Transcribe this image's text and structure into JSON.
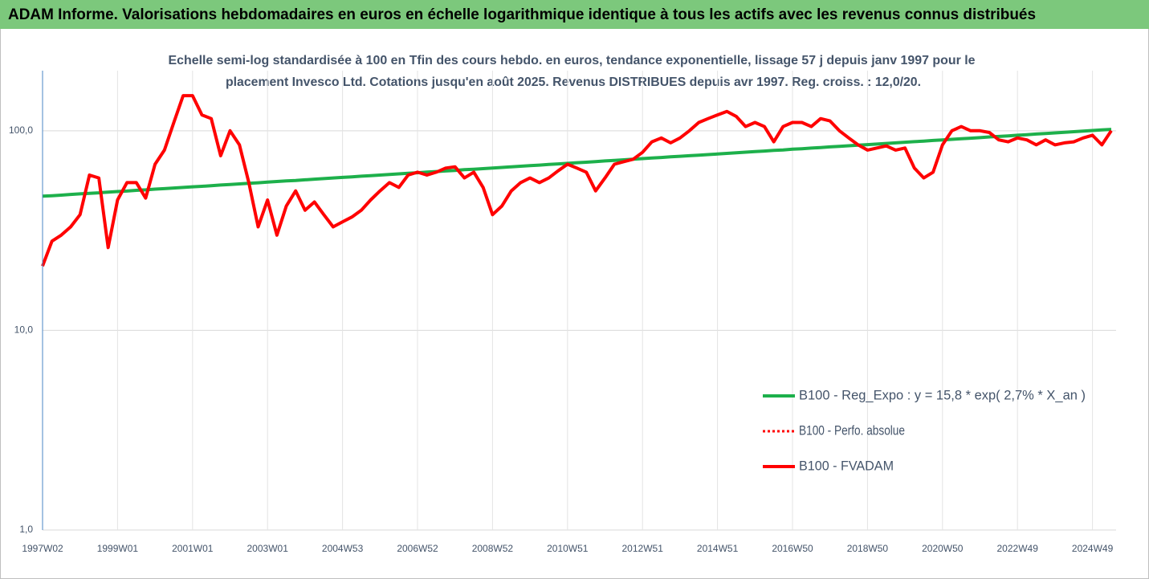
{
  "chart_data": {
    "type": "line",
    "title": "ADAM Informe. Valorisations hebdomadaires en euros en échelle logarithmique identique à tous les actifs avec les revenus connus distribués",
    "subtitle": [
      "Echelle semi-log standardisée à 100 en Tfin des cours hebdo. en euros, tendance exponentielle, lissage 57 j depuis janv 1997 pour le",
      "placement Invesco Ltd. Cotations jusqu'en août 2025. Revenus DISTRIBUES depuis avr 1997. Reg. croiss. : 12,0/20."
    ],
    "log_scale": true,
    "grid": true,
    "legend": "right",
    "ylim": [
      1,
      200
    ],
    "yticks": [
      {
        "value": 1,
        "label": "1,0"
      },
      {
        "value": 10,
        "label": "10,0"
      },
      {
        "value": 100,
        "label": "100,0"
      }
    ],
    "categories": [
      "1997W02",
      null,
      null,
      null,
      null,
      null,
      null,
      null,
      "1999W01",
      null,
      null,
      null,
      null,
      null,
      null,
      null,
      "2001W01",
      null,
      null,
      null,
      null,
      null,
      null,
      null,
      "2003W01",
      null,
      null,
      null,
      null,
      null,
      null,
      null,
      "2004W53",
      null,
      null,
      null,
      null,
      null,
      null,
      null,
      "2006W52",
      null,
      null,
      null,
      null,
      null,
      null,
      null,
      "2008W52",
      null,
      null,
      null,
      null,
      null,
      null,
      null,
      "2010W51",
      null,
      null,
      null,
      null,
      null,
      null,
      null,
      "2012W51",
      null,
      null,
      null,
      null,
      null,
      null,
      null,
      "2014W51",
      null,
      null,
      null,
      null,
      null,
      null,
      null,
      "2016W50",
      null,
      null,
      null,
      null,
      null,
      null,
      null,
      "2018W50",
      null,
      null,
      null,
      null,
      null,
      null,
      null,
      "2020W50",
      null,
      null,
      null,
      null,
      null,
      null,
      null,
      "2022W49",
      null,
      null,
      null,
      null,
      null,
      null,
      null,
      "2024W49",
      null,
      null
    ],
    "series": [
      {
        "name": "B100 - Reg_Expo : y = 15,8 * exp( 2,7% *  X_an )",
        "color": "#1db04b",
        "style": "solid",
        "values": [
          47.0,
          47.3,
          47.6,
          48.0,
          48.3,
          48.6,
          48.9,
          49.3,
          49.6,
          49.9,
          50.3,
          50.6,
          51.0,
          51.3,
          51.7,
          52.0,
          52.4,
          52.7,
          53.1,
          53.5,
          53.8,
          54.2,
          54.6,
          54.9,
          55.3,
          55.7,
          56.1,
          56.4,
          56.8,
          57.2,
          57.6,
          58.0,
          58.4,
          58.8,
          59.2,
          59.6,
          60.0,
          60.4,
          60.8,
          61.2,
          61.6,
          62.1,
          62.5,
          62.9,
          63.3,
          63.8,
          64.2,
          64.6,
          65.1,
          65.5,
          66.0,
          66.4,
          66.9,
          67.3,
          67.8,
          68.2,
          68.7,
          69.2,
          69.6,
          70.1,
          70.6,
          71.1,
          71.5,
          72.0,
          72.5,
          73.0,
          73.5,
          74.0,
          74.5,
          75.0,
          75.5,
          76.0,
          76.5,
          77.0,
          77.6,
          78.1,
          78.6,
          79.1,
          79.7,
          80.2,
          80.8,
          81.3,
          81.9,
          82.4,
          83.0,
          83.5,
          84.1,
          84.7,
          85.2,
          85.8,
          86.4,
          87.0,
          87.6,
          88.2,
          88.8,
          89.4,
          90.0,
          90.6,
          91.2,
          91.8,
          92.4,
          93.1,
          93.7,
          94.3,
          95.0,
          95.6,
          96.3,
          96.9,
          97.6,
          98.2,
          98.9,
          99.6,
          100.3,
          101.0,
          101.6
        ]
      },
      {
        "name": "B100 - Perfo. absolue",
        "color": "#ff0000",
        "style": "dotted",
        "values": [
          21,
          28,
          30,
          33,
          38,
          60,
          58,
          26,
          45,
          55,
          55,
          46,
          68,
          80,
          110,
          150,
          150,
          120,
          115,
          75,
          100,
          85,
          55,
          33,
          45,
          30,
          42,
          50,
          40,
          44,
          38,
          33,
          35,
          37,
          40,
          45,
          50,
          55,
          52,
          60,
          62,
          60,
          62,
          65,
          66,
          58,
          62,
          52,
          38,
          42,
          50,
          55,
          58,
          55,
          58,
          63,
          68,
          65,
          62,
          50,
          58,
          68,
          70,
          72,
          78,
          88,
          92,
          87,
          92,
          100,
          110,
          115,
          120,
          125,
          118,
          105,
          110,
          105,
          88,
          105,
          110,
          110,
          105,
          115,
          112,
          100,
          92,
          85,
          80,
          82,
          84,
          80,
          82,
          65,
          58,
          62,
          85,
          100,
          105,
          100,
          100,
          98,
          90,
          88,
          92,
          90,
          85,
          90,
          85,
          87,
          88,
          92,
          95,
          85,
          100
        ]
      },
      {
        "name": "B100 - FVADAM",
        "color": "#ff0000",
        "style": "solid",
        "values": [
          21,
          28,
          30,
          33,
          38,
          60,
          58,
          26,
          45,
          55,
          55,
          46,
          68,
          80,
          110,
          150,
          150,
          120,
          115,
          75,
          100,
          85,
          55,
          33,
          45,
          30,
          42,
          50,
          40,
          44,
          38,
          33,
          35,
          37,
          40,
          45,
          50,
          55,
          52,
          60,
          62,
          60,
          62,
          65,
          66,
          58,
          62,
          52,
          38,
          42,
          50,
          55,
          58,
          55,
          58,
          63,
          68,
          65,
          62,
          50,
          58,
          68,
          70,
          72,
          78,
          88,
          92,
          87,
          92,
          100,
          110,
          115,
          120,
          125,
          118,
          105,
          110,
          105,
          88,
          105,
          110,
          110,
          105,
          115,
          112,
          100,
          92,
          85,
          80,
          82,
          84,
          80,
          82,
          65,
          58,
          62,
          85,
          100,
          105,
          100,
          100,
          98,
          90,
          88,
          92,
          90,
          85,
          90,
          85,
          87,
          88,
          92,
          95,
          85,
          100
        ]
      }
    ]
  }
}
